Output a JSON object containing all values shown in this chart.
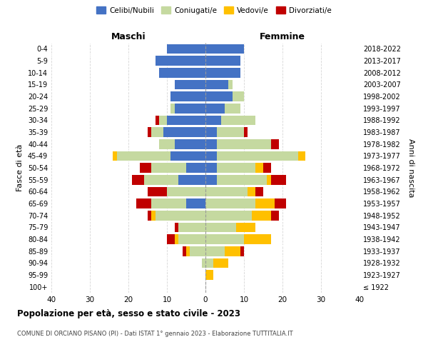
{
  "age_groups": [
    "100+",
    "95-99",
    "90-94",
    "85-89",
    "80-84",
    "75-79",
    "70-74",
    "65-69",
    "60-64",
    "55-59",
    "50-54",
    "45-49",
    "40-44",
    "35-39",
    "30-34",
    "25-29",
    "20-24",
    "15-19",
    "10-14",
    "5-9",
    "0-4"
  ],
  "birth_years": [
    "≤ 1922",
    "1923-1927",
    "1928-1932",
    "1933-1937",
    "1938-1942",
    "1943-1947",
    "1948-1952",
    "1953-1957",
    "1958-1962",
    "1963-1967",
    "1968-1972",
    "1973-1977",
    "1978-1982",
    "1983-1987",
    "1988-1992",
    "1993-1997",
    "1998-2002",
    "2003-2007",
    "2008-2012",
    "2013-2017",
    "2018-2022"
  ],
  "male": {
    "celibi": [
      0,
      0,
      0,
      0,
      0,
      0,
      0,
      5,
      0,
      7,
      5,
      9,
      8,
      11,
      10,
      8,
      9,
      8,
      12,
      13,
      10
    ],
    "coniugati": [
      0,
      0,
      1,
      4,
      7,
      7,
      13,
      9,
      10,
      9,
      9,
      14,
      4,
      3,
      2,
      1,
      0,
      0,
      0,
      0,
      0
    ],
    "vedovi": [
      0,
      0,
      0,
      1,
      1,
      0,
      1,
      0,
      0,
      0,
      0,
      1,
      0,
      0,
      0,
      0,
      0,
      0,
      0,
      0,
      0
    ],
    "divorziati": [
      0,
      0,
      0,
      1,
      2,
      1,
      1,
      4,
      5,
      3,
      3,
      0,
      0,
      1,
      1,
      0,
      0,
      0,
      0,
      0,
      0
    ]
  },
  "female": {
    "nubili": [
      0,
      0,
      0,
      0,
      0,
      0,
      0,
      0,
      0,
      3,
      3,
      3,
      3,
      3,
      4,
      5,
      7,
      6,
      9,
      9,
      10
    ],
    "coniugate": [
      0,
      0,
      2,
      5,
      10,
      8,
      12,
      13,
      11,
      13,
      10,
      21,
      14,
      7,
      9,
      4,
      3,
      1,
      0,
      0,
      0
    ],
    "vedove": [
      0,
      2,
      4,
      4,
      7,
      5,
      5,
      5,
      2,
      1,
      2,
      2,
      0,
      0,
      0,
      0,
      0,
      0,
      0,
      0,
      0
    ],
    "divorziate": [
      0,
      0,
      0,
      1,
      0,
      0,
      2,
      3,
      2,
      4,
      2,
      0,
      2,
      1,
      0,
      0,
      0,
      0,
      0,
      0,
      0
    ]
  },
  "colors": {
    "celibi": "#4472c4",
    "coniugati": "#c5d9a0",
    "vedovi": "#ffc000",
    "divorziati": "#c00000"
  },
  "xlim": 40,
  "title": "Popolazione per età, sesso e stato civile - 2023",
  "subtitle": "COMUNE DI ORCIANO PISANO (PI) - Dati ISTAT 1° gennaio 2023 - Elaborazione TUTTITALIA.IT",
  "ylabel_left": "Fasce di età",
  "ylabel_right": "Anni di nascita",
  "xlabel_maschi": "Maschi",
  "xlabel_femmine": "Femmine",
  "bg_color": "#ffffff",
  "grid_color": "#cccccc"
}
